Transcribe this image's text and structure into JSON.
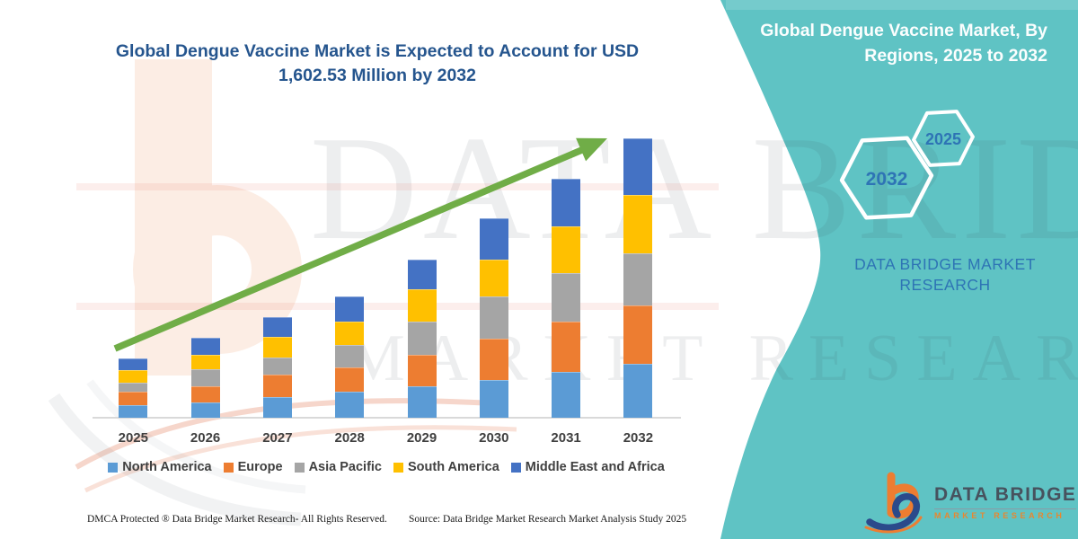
{
  "page": {
    "left_title_line1": "Global Dengue Vaccine Market is Expected to Account for USD",
    "left_title_line2": "1,602.53 Million by 2032",
    "right_title_line1": "Global Dengue Vaccine Market, By",
    "right_title_line2": "Regions, 2025 to 2032",
    "brand_line1": "DATA BRIDGE MARKET",
    "brand_line2": "RESEARCH",
    "hexagon_far_label": "2032",
    "hexagon_near_label": "2025",
    "footer_dmca": "DMCA Protected ® Data Bridge Market Research-  All Rights Reserved.",
    "footer_source": "Source: Data Bridge Market Research  Market Analysis Study 2025",
    "logo_name": "DATA BRIDGE",
    "logo_tagline": "MARKET RESEARCH",
    "watermark_line1": "DATA BRIDGE",
    "watermark_line2": "MARKET RESEARCH"
  },
  "colors": {
    "teal_background": "#5FC3C4",
    "title_blue": "#25558E",
    "accent_blue": "#2E74B5",
    "arrow_green": "#70AD47",
    "axis_text": "#404040",
    "logo_slate": "#47525E",
    "logo_orange": "#ED7D31",
    "logo_navy": "#2B4A8B"
  },
  "chart_data": {
    "type": "bar",
    "stacked": true,
    "title": "Global Dengue Vaccine Market is Expected to Account for USD 1,602.53 Million by 2032",
    "unit": "USD Million",
    "values_estimated_from_bar_heights": true,
    "y_axis_visible": false,
    "legend_position": "bottom",
    "categories": [
      "2025",
      "2026",
      "2027",
      "2028",
      "2029",
      "2030",
      "2031",
      "2032"
    ],
    "series": [
      {
        "name": "North America",
        "color": "#5B9BD5",
        "values": [
          72,
          89,
          120,
          149,
          180,
          218,
          263,
          309
        ]
      },
      {
        "name": "Europe",
        "color": "#ED7D31",
        "values": [
          77,
          94,
          129,
          138,
          180,
          237,
          287,
          335
        ]
      },
      {
        "name": "Asia Pacific",
        "color": "#A5A5A5",
        "values": [
          54,
          94,
          99,
          129,
          194,
          241,
          280,
          300
        ]
      },
      {
        "name": "South America",
        "color": "#FFC000",
        "values": [
          72,
          86,
          115,
          138,
          184,
          210,
          266,
          335
        ]
      },
      {
        "name": "Middle East and Africa",
        "color": "#4472C4",
        "values": [
          65,
          95,
          117,
          143,
          168,
          237,
          278,
          323.53
        ]
      }
    ],
    "totals": [
      340,
      458,
      580,
      697,
      906,
      1143,
      1374,
      1602.53
    ],
    "trend_arrow": {
      "from_year": "2025",
      "to_year": "2032",
      "direction": "up"
    }
  }
}
